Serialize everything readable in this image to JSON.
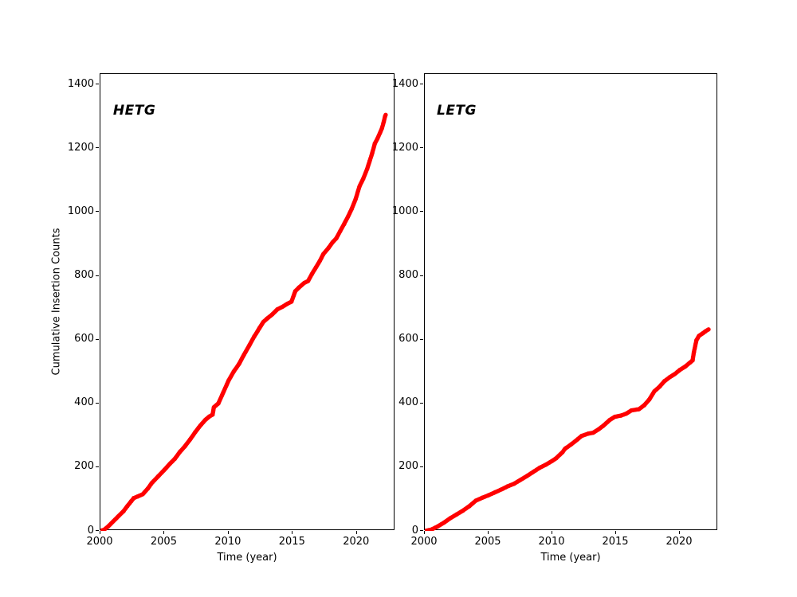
{
  "figure": {
    "background": "#ffffff",
    "marker_color": "#ff0000",
    "axis_color": "#000000"
  },
  "chart_data": [
    {
      "id": "hetg",
      "type": "scatter",
      "annotation": {
        "label": "HETG",
        "x": 2001.05,
        "y": 1315
      },
      "xlabel": "Time (year)",
      "ylabel": "Cumulative Insertion Counts",
      "xlim": [
        2000,
        2023
      ],
      "ylim": [
        0,
        1433
      ],
      "xticks": [
        2000,
        2005,
        2010,
        2015,
        2020
      ],
      "xtick_labels": [
        "2000",
        "2005",
        "2010",
        "2015",
        "2020"
      ],
      "yticks": [
        0,
        200,
        400,
        600,
        800,
        1000,
        1200,
        1400
      ],
      "ytick_labels": [
        "0",
        "200",
        "400",
        "600",
        "800",
        "1000",
        "1200",
        "1400"
      ],
      "marker_color": "#ff0000",
      "points": [
        [
          2000.0,
          0
        ],
        [
          2000.3,
          4
        ],
        [
          2000.6,
          14
        ],
        [
          2001.0,
          30
        ],
        [
          2001.4,
          46
        ],
        [
          2001.8,
          62
        ],
        [
          2002.1,
          78
        ],
        [
          2002.4,
          93
        ],
        [
          2002.6,
          103
        ],
        [
          2002.9,
          108
        ],
        [
          2003.3,
          115
        ],
        [
          2003.7,
          133
        ],
        [
          2004.0,
          150
        ],
        [
          2004.5,
          171
        ],
        [
          2005.0,
          192
        ],
        [
          2005.4,
          210
        ],
        [
          2005.8,
          226
        ],
        [
          2006.2,
          248
        ],
        [
          2006.6,
          266
        ],
        [
          2007.0,
          287
        ],
        [
          2007.4,
          310
        ],
        [
          2007.8,
          331
        ],
        [
          2008.2,
          349
        ],
        [
          2008.5,
          359
        ],
        [
          2008.75,
          365
        ],
        [
          2008.85,
          388
        ],
        [
          2009.2,
          400
        ],
        [
          2009.6,
          436
        ],
        [
          2010.0,
          472
        ],
        [
          2010.4,
          500
        ],
        [
          2010.8,
          523
        ],
        [
          2011.2,
          553
        ],
        [
          2011.6,
          581
        ],
        [
          2012.0,
          610
        ],
        [
          2012.4,
          636
        ],
        [
          2012.7,
          655
        ],
        [
          2013.0,
          666
        ],
        [
          2013.4,
          679
        ],
        [
          2013.8,
          695
        ],
        [
          2014.2,
          703
        ],
        [
          2014.6,
          713
        ],
        [
          2014.9,
          719
        ],
        [
          2015.2,
          752
        ],
        [
          2015.5,
          764
        ],
        [
          2015.9,
          778
        ],
        [
          2016.2,
          784
        ],
        [
          2016.5,
          806
        ],
        [
          2016.8,
          826
        ],
        [
          2017.1,
          846
        ],
        [
          2017.4,
          869
        ],
        [
          2017.8,
          888
        ],
        [
          2018.1,
          905
        ],
        [
          2018.4,
          918
        ],
        [
          2018.7,
          940
        ],
        [
          2019.0,
          962
        ],
        [
          2019.3,
          985
        ],
        [
          2019.6,
          1010
        ],
        [
          2019.9,
          1040
        ],
        [
          2020.2,
          1080
        ],
        [
          2020.5,
          1105
        ],
        [
          2020.8,
          1135
        ],
        [
          2021.0,
          1160
        ],
        [
          2021.2,
          1185
        ],
        [
          2021.4,
          1215
        ],
        [
          2021.6,
          1230
        ],
        [
          2021.8,
          1248
        ],
        [
          2021.95,
          1262
        ],
        [
          2022.1,
          1283
        ],
        [
          2022.2,
          1300
        ],
        [
          2022.25,
          1305
        ]
      ]
    },
    {
      "id": "letg",
      "type": "scatter",
      "annotation": {
        "label": "LETG",
        "x": 2001.0,
        "y": 1315
      },
      "xlabel": "Time (year)",
      "ylabel": "",
      "xlim": [
        2000,
        2023
      ],
      "ylim": [
        0,
        1433
      ],
      "xticks": [
        2000,
        2005,
        2010,
        2015,
        2020
      ],
      "xtick_labels": [
        "2000",
        "2005",
        "2010",
        "2015",
        "2020"
      ],
      "yticks": [
        0,
        200,
        400,
        600,
        800,
        1000,
        1200,
        1400
      ],
      "ytick_labels": [
        "0",
        "200",
        "400",
        "600",
        "800",
        "1000",
        "1200",
        "1400"
      ],
      "marker_color": "#ff0000",
      "points": [
        [
          2000.0,
          0
        ],
        [
          2000.5,
          4
        ],
        [
          2001.0,
          14
        ],
        [
          2001.5,
          26
        ],
        [
          2002.0,
          40
        ],
        [
          2002.5,
          52
        ],
        [
          2003.0,
          64
        ],
        [
          2003.5,
          78
        ],
        [
          2004.0,
          95
        ],
        [
          2004.5,
          104
        ],
        [
          2005.0,
          112
        ],
        [
          2005.5,
          121
        ],
        [
          2006.0,
          130
        ],
        [
          2006.5,
          140
        ],
        [
          2007.0,
          148
        ],
        [
          2007.5,
          160
        ],
        [
          2008.0,
          172
        ],
        [
          2008.5,
          185
        ],
        [
          2009.0,
          198
        ],
        [
          2009.5,
          208
        ],
        [
          2010.0,
          220
        ],
        [
          2010.3,
          228
        ],
        [
          2010.8,
          247
        ],
        [
          2011.0,
          258
        ],
        [
          2011.5,
          272
        ],
        [
          2012.0,
          288
        ],
        [
          2012.3,
          298
        ],
        [
          2012.8,
          305
        ],
        [
          2013.2,
          308
        ],
        [
          2013.6,
          318
        ],
        [
          2014.0,
          330
        ],
        [
          2014.5,
          348
        ],
        [
          2014.9,
          358
        ],
        [
          2015.4,
          362
        ],
        [
          2015.8,
          368
        ],
        [
          2016.2,
          378
        ],
        [
          2016.8,
          382
        ],
        [
          2017.2,
          394
        ],
        [
          2017.6,
          412
        ],
        [
          2018.0,
          438
        ],
        [
          2018.4,
          452
        ],
        [
          2018.8,
          470
        ],
        [
          2019.2,
          482
        ],
        [
          2019.6,
          492
        ],
        [
          2020.0,
          505
        ],
        [
          2020.4,
          515
        ],
        [
          2020.8,
          528
        ],
        [
          2021.0,
          535
        ],
        [
          2021.1,
          560
        ],
        [
          2021.3,
          598
        ],
        [
          2021.5,
          612
        ],
        [
          2021.8,
          620
        ],
        [
          2022.0,
          626
        ],
        [
          2022.25,
          632
        ]
      ]
    }
  ]
}
